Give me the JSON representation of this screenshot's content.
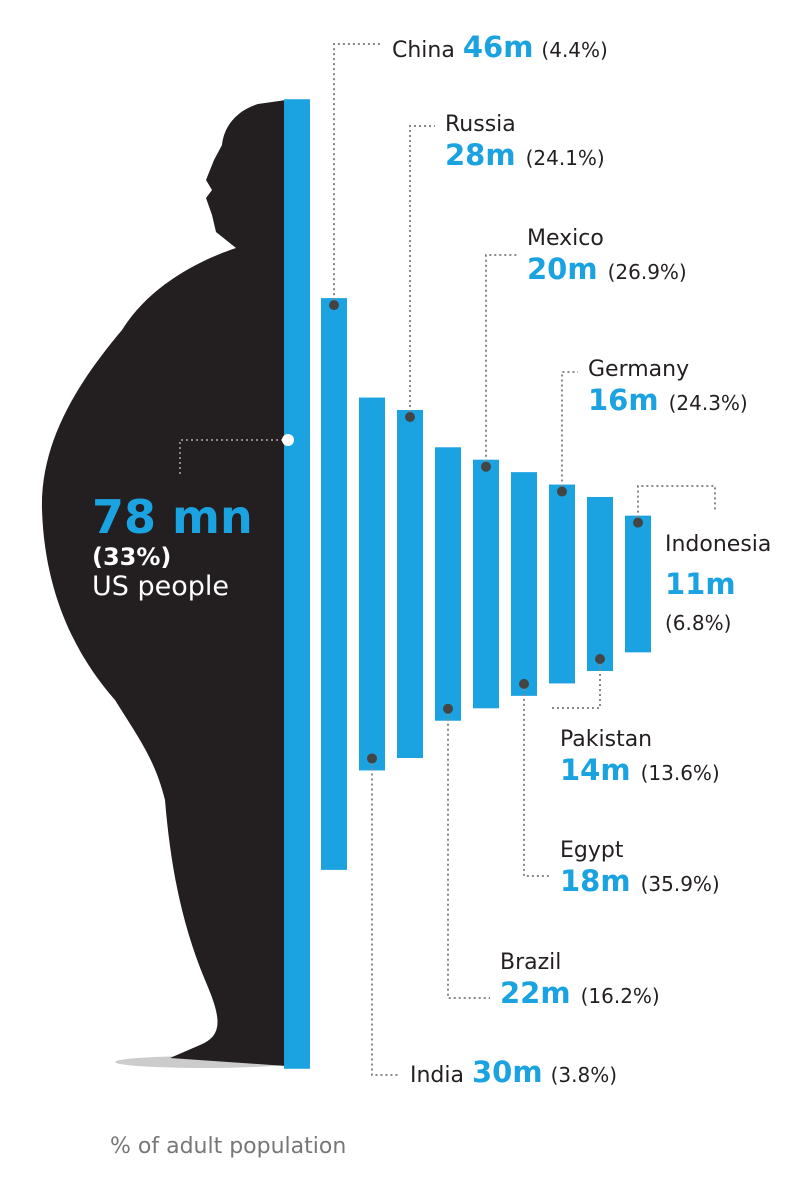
{
  "colors": {
    "bar": "#1aa3e0",
    "silhouette": "#231f20"
  },
  "chart_data": {
    "type": "bar",
    "title": "",
    "unit": "million obese adults",
    "footnote": "% of adult population",
    "us": {
      "name": "US people",
      "value": 78,
      "value_label": "78 mn",
      "pct": "(33%)"
    },
    "categories": [
      "China",
      "India",
      "Russia",
      "Brazil",
      "Mexico",
      "Egypt",
      "Germany",
      "Pakistan",
      "Indonesia"
    ],
    "values": [
      46,
      30,
      28,
      22,
      20,
      18,
      16,
      14,
      11
    ],
    "value_labels": [
      "46m",
      "30m",
      "28m",
      "22m",
      "20m",
      "18m",
      "16m",
      "14m",
      "11m"
    ],
    "pct_labels": [
      "(4.4%)",
      "(3.8%)",
      "(24.1%)",
      "(16.2%)",
      "(26.9%)",
      "(35.9%)",
      "(24.3%)",
      "(13.6%)",
      "(6.8%)"
    ]
  }
}
